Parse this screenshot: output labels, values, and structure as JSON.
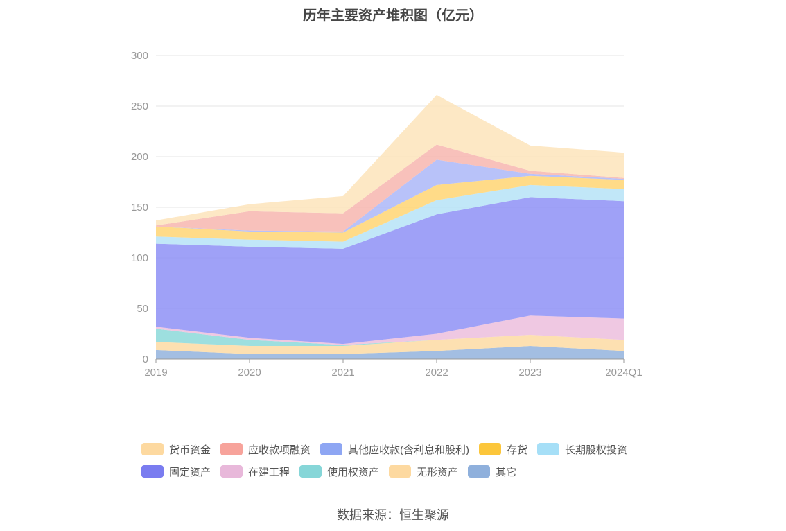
{
  "chart_data": {
    "type": "area",
    "stacked": true,
    "title": "历年主要资产堆积图（亿元）",
    "categories": [
      "2019",
      "2020",
      "2021",
      "2022",
      "2023",
      "2024Q1"
    ],
    "ylim": [
      0,
      300
    ],
    "yticks": [
      0,
      50,
      100,
      150,
      200,
      250,
      300
    ],
    "grid": true,
    "legend_position": "bottom",
    "series": [
      {
        "name": "其它",
        "color": "#8fb0dc",
        "values": [
          9,
          5,
          5,
          8,
          13,
          8
        ]
      },
      {
        "name": "无形资产",
        "color": "#fdd9a0",
        "values": [
          8,
          8,
          8,
          11,
          11,
          11
        ]
      },
      {
        "name": "使用权资产",
        "color": "#88d8d8",
        "values": [
          13,
          6,
          1,
          0,
          0,
          0
        ]
      },
      {
        "name": "在建工程",
        "color": "#ecbcdc",
        "values": [
          2,
          2,
          1,
          6,
          19,
          21
        ]
      },
      {
        "name": "固定资产",
        "color": "#8a8cf5",
        "values": [
          82,
          90,
          94,
          118,
          117,
          116
        ]
      },
      {
        "name": "长期股权投资",
        "color": "#b3e2f7",
        "values": [
          7,
          7,
          7,
          14,
          12,
          12
        ]
      },
      {
        "name": "存货",
        "color": "#ffd36e",
        "values": [
          10,
          8,
          9,
          15,
          9,
          9
        ]
      },
      {
        "name": "其他应收款(含利息和股利)",
        "color": "#a8b5f8",
        "values": [
          0,
          1,
          1,
          25,
          2,
          1
        ]
      },
      {
        "name": "应收款项融资",
        "color": "#f7b3ac",
        "values": [
          1,
          19,
          18,
          15,
          3,
          1
        ]
      },
      {
        "name": "货币资金",
        "color": "#fde3b8",
        "values": [
          5,
          7,
          17,
          49,
          25,
          25
        ]
      }
    ]
  },
  "legend": {
    "row1": [
      {
        "label": "货币资金",
        "color": "#fdd9a0"
      },
      {
        "label": "应收款项融资",
        "color": "#f7a39b"
      },
      {
        "label": "其他应收款(含利息和股利)",
        "color": "#8ea6f3"
      },
      {
        "label": "存货",
        "color": "#fcc63b"
      },
      {
        "label": "长期股权投资",
        "color": "#a6dff7"
      }
    ],
    "row2": [
      {
        "label": "固定资产",
        "color": "#7a7cf0"
      },
      {
        "label": "在建工程",
        "color": "#e8b8da"
      },
      {
        "label": "使用权资产",
        "color": "#86d6d8"
      },
      {
        "label": "无形资产",
        "color": "#fdd9a0"
      },
      {
        "label": "其它",
        "color": "#8fb0dc"
      }
    ]
  },
  "source": "数据来源：恒生聚源"
}
